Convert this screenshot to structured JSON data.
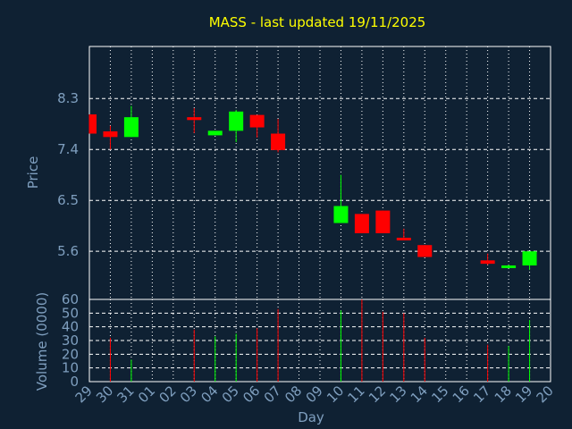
{
  "chart_data": {
    "type": "candlestick",
    "title": "MASS - last updated 19/11/2025",
    "xlabel": "Day",
    "colors": {
      "up": "#00ff00",
      "down": "#ff0000",
      "grid": "#ffffff",
      "axis": "#7f9fbf",
      "title": "#ffff00",
      "background": "#0f2133"
    },
    "x_ticks": [
      "29",
      "30",
      "31",
      "01",
      "02",
      "03",
      "04",
      "05",
      "06",
      "07",
      "08",
      "09",
      "10",
      "11",
      "12",
      "13",
      "14",
      "15",
      "16",
      "17",
      "18",
      "19",
      "20"
    ],
    "price_axis": {
      "label": "Price",
      "ylim": [
        4.75,
        9.22
      ],
      "ticks": [
        "8.3",
        "7.4",
        "6.5",
        "5.6"
      ],
      "tick_values": [
        8.3,
        7.4,
        6.5,
        5.6
      ]
    },
    "volume_axis": {
      "label": "Volume (0000)",
      "ylim": [
        0,
        60
      ],
      "ticks": [
        "60",
        "50",
        "40",
        "30",
        "20",
        "10",
        "0"
      ],
      "tick_values": [
        60,
        50,
        40,
        30,
        20,
        10,
        0
      ]
    },
    "candles": [
      {
        "day": "29",
        "open": 8.02,
        "close": 7.68,
        "high": 8.02,
        "low": 7.68,
        "volume": 0
      },
      {
        "day": "30",
        "open": 7.72,
        "close": 7.62,
        "high": 7.82,
        "low": 7.4,
        "volume": 32
      },
      {
        "day": "31",
        "open": 7.62,
        "close": 7.97,
        "high": 8.17,
        "low": 7.62,
        "volume": 16
      },
      {
        "day": "03",
        "open": 7.97,
        "close": 7.92,
        "high": 8.13,
        "low": 7.69,
        "volume": 38
      },
      {
        "day": "04",
        "open": 7.65,
        "close": 7.73,
        "high": 7.73,
        "low": 7.65,
        "volume": 33
      },
      {
        "day": "05",
        "open": 7.73,
        "close": 8.07,
        "high": 8.1,
        "low": 7.53,
        "volume": 35
      },
      {
        "day": "06",
        "open": 8.01,
        "close": 7.79,
        "high": 8.01,
        "low": 7.61,
        "volume": 39
      },
      {
        "day": "07",
        "open": 7.68,
        "close": 7.39,
        "high": 7.94,
        "low": 7.35,
        "volume": 53
      },
      {
        "day": "10",
        "open": 6.1,
        "close": 6.4,
        "high": 6.95,
        "low": 6.1,
        "volume": 52
      },
      {
        "day": "11",
        "open": 6.26,
        "close": 5.92,
        "high": 6.26,
        "low": 5.92,
        "volume": 60
      },
      {
        "day": "12",
        "open": 6.32,
        "close": 5.92,
        "high": 6.32,
        "low": 5.92,
        "volume": 51
      },
      {
        "day": "13",
        "open": 5.84,
        "close": 5.8,
        "high": 6.0,
        "low": 5.8,
        "volume": 50
      },
      {
        "day": "14",
        "open": 5.71,
        "close": 5.5,
        "high": 5.71,
        "low": 5.5,
        "volume": 32
      },
      {
        "day": "17",
        "open": 5.44,
        "close": 5.38,
        "high": 5.56,
        "low": 5.36,
        "volume": 27
      },
      {
        "day": "18",
        "open": 5.32,
        "close": 5.35,
        "high": 5.36,
        "low": 5.3,
        "volume": 26
      },
      {
        "day": "19",
        "open": 5.35,
        "close": 5.6,
        "high": 5.6,
        "low": 5.27,
        "volume": 45
      }
    ]
  }
}
